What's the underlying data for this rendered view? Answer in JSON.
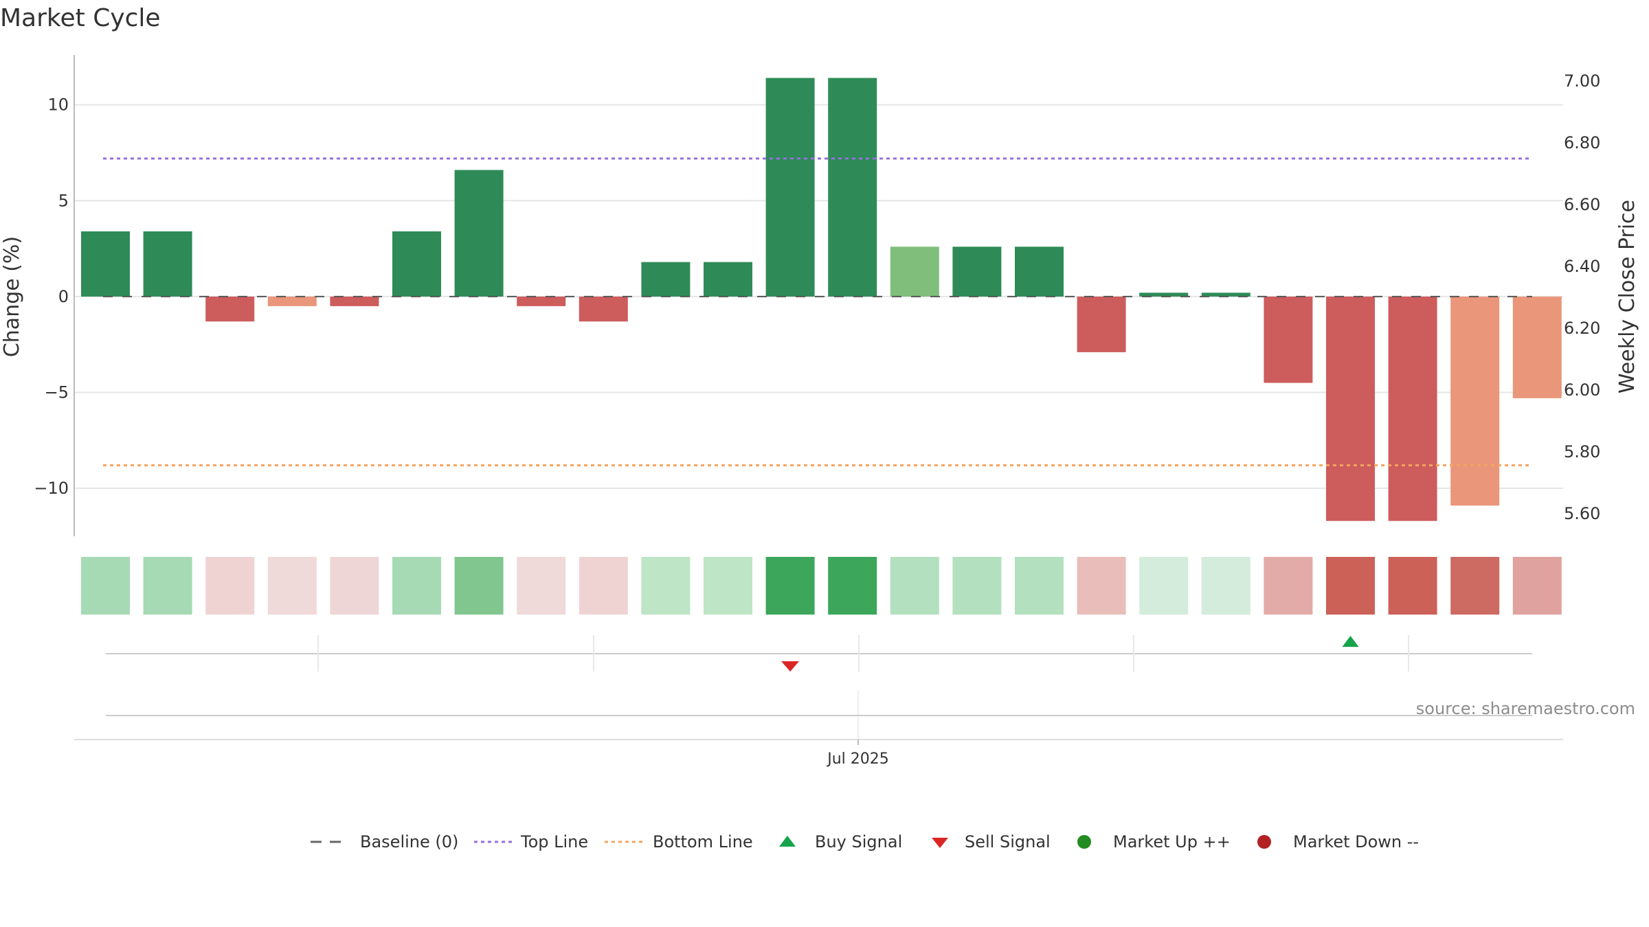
{
  "chart_data": {
    "type": "bar",
    "title": "Market Cycle",
    "ylabel": "Change (%)",
    "y2label": "Weekly Close Price",
    "xtick_label": "Jul 2025",
    "source": "source: sharemaestro.com",
    "ylim": [
      -12.5,
      12.6
    ],
    "y_ticks": [
      10,
      5,
      0,
      -5,
      -10
    ],
    "y_tick_labels": [
      "10",
      "5",
      "0",
      "−5",
      "−10"
    ],
    "y2lim": [
      5.527,
      7.085
    ],
    "y2_ticks": [
      7.0,
      6.8,
      6.6,
      6.4,
      6.2,
      6.0,
      5.8,
      5.6
    ],
    "y2_tick_labels": [
      "7.00",
      "6.80",
      "6.60",
      "6.40",
      "6.20",
      "6.00",
      "5.80",
      "5.60"
    ],
    "grid": true,
    "top_line": 7.2,
    "bottom_line": -8.8,
    "baseline": 0,
    "values": [
      3.4,
      3.4,
      -1.3,
      -0.5,
      -0.5,
      3.4,
      6.6,
      -0.5,
      -1.3,
      1.8,
      1.8,
      11.4,
      11.4,
      2.6,
      2.6,
      2.6,
      -2.9,
      0.2,
      0.2,
      -4.5,
      -11.7,
      -11.7,
      -10.9,
      -5.3
    ],
    "bar_colors": [
      "#2e8b57",
      "#2e8b57",
      "#cd5c5c",
      "#e9967a",
      "#cd5c5c",
      "#2e8b57",
      "#2e8b57",
      "#cd5c5c",
      "#cd5c5c",
      "#2e8b57",
      "#2e8b57",
      "#2e8b57",
      "#2e8b57",
      "#7fbf7b",
      "#2e8b57",
      "#2e8b57",
      "#cd5c5c",
      "#2e8b57",
      "#2e8b57",
      "#cd5c5c",
      "#cd5c5c",
      "#cd5c5c",
      "#e9967a",
      "#e9967a"
    ],
    "heat_colors": [
      "#a6dab4",
      "#a6dab4",
      "#efd3d3",
      "#f0d9d9",
      "#efd6d6",
      "#a6dab4",
      "#80c68e",
      "#f0d9d9",
      "#efd3d3",
      "#bde5c6",
      "#bde5c6",
      "#3ca65a",
      "#3ca65a",
      "#b3e0bf",
      "#b3e0bf",
      "#b3e0bf",
      "#e8bdba",
      "#d3ecdb",
      "#d3ecdb",
      "#e3aba7",
      "#cc6158",
      "#cc6158",
      "#cd6a62",
      "#e0a29e"
    ],
    "signals": [
      {
        "type": "sell",
        "index": 11
      },
      {
        "type": "buy",
        "index": 20
      }
    ],
    "legend": [
      {
        "label": "Baseline (0)",
        "marker": "dashed-line",
        "color": "#666666"
      },
      {
        "label": "Top Line",
        "marker": "dotted-line",
        "color": "#9370db"
      },
      {
        "label": "Bottom Line",
        "marker": "dotted-line",
        "color": "#f4a460"
      },
      {
        "label": "Buy Signal",
        "marker": "triangle-up",
        "color": "#16a34a"
      },
      {
        "label": "Sell Signal",
        "marker": "triangle-down",
        "color": "#dc2626"
      },
      {
        "label": "Market Up ++",
        "marker": "circle",
        "color": "#228b22"
      },
      {
        "label": "Market Down --",
        "marker": "circle",
        "color": "#b22222"
      }
    ]
  }
}
